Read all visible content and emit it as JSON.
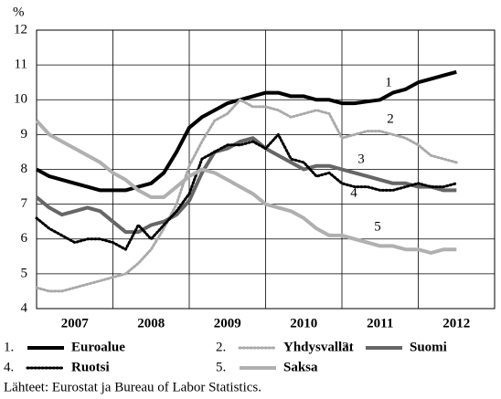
{
  "chart_data": {
    "type": "line",
    "unit_label": "%",
    "source": "Lähteet: Eurostat ja Bureau of Labor Statistics.",
    "xlim": [
      2007,
      2013
    ],
    "xticks": [
      2008,
      2009,
      2010,
      2011,
      2012
    ],
    "year_labels": [
      "2007",
      "2008",
      "2009",
      "2010",
      "2011",
      "2012"
    ],
    "ylim": [
      4,
      12
    ],
    "yticks": [
      4,
      5,
      6,
      7,
      8,
      9,
      10,
      11,
      12
    ],
    "grid": true,
    "x": [
      2007.0,
      2007.167,
      2007.333,
      2007.5,
      2007.667,
      2007.833,
      2008.0,
      2008.167,
      2008.333,
      2008.5,
      2008.667,
      2008.833,
      2009.0,
      2009.167,
      2009.333,
      2009.5,
      2009.667,
      2009.833,
      2010.0,
      2010.167,
      2010.333,
      2010.5,
      2010.667,
      2010.833,
      2011.0,
      2011.167,
      2011.333,
      2011.5,
      2011.667,
      2011.833,
      2012.0,
      2012.167,
      2012.333,
      2012.5
    ],
    "series": [
      {
        "name": "Euroalue",
        "number": "1",
        "legend_number": "1.",
        "color": "#000000",
        "width": 4,
        "dash": "solid",
        "values": [
          8.0,
          7.8,
          7.7,
          7.6,
          7.5,
          7.4,
          7.4,
          7.4,
          7.5,
          7.6,
          7.9,
          8.5,
          9.2,
          9.5,
          9.7,
          9.9,
          10.0,
          10.1,
          10.2,
          10.2,
          10.1,
          10.1,
          10.0,
          10.0,
          9.9,
          9.9,
          9.95,
          10.0,
          10.2,
          10.3,
          10.5,
          10.6,
          10.7,
          10.8
        ]
      },
      {
        "name": "Yhdysvallat",
        "number": "2",
        "legend_number": "2.",
        "color": "#aaaaaa",
        "width": 3,
        "dash": "dot",
        "values": [
          4.6,
          4.5,
          4.5,
          4.6,
          4.7,
          4.8,
          4.9,
          5.0,
          5.3,
          5.7,
          6.3,
          7.0,
          8.1,
          8.8,
          9.4,
          9.6,
          10.0,
          9.8,
          9.8,
          9.7,
          9.5,
          9.6,
          9.7,
          9.6,
          8.9,
          9.0,
          9.1,
          9.1,
          9.0,
          8.9,
          8.7,
          8.4,
          8.3,
          8.2
        ]
      },
      {
        "name": "Suomi",
        "number": "3",
        "legend_number": "3.",
        "color": "#666666",
        "width": 4,
        "dash": "solid",
        "values": [
          7.2,
          6.9,
          6.7,
          6.8,
          6.9,
          6.8,
          6.5,
          6.2,
          6.2,
          6.4,
          6.5,
          6.7,
          7.1,
          7.9,
          8.5,
          8.6,
          8.8,
          8.9,
          8.6,
          8.4,
          8.2,
          8.0,
          8.1,
          8.1,
          8.0,
          7.9,
          7.8,
          7.7,
          7.6,
          7.6,
          7.5,
          7.5,
          7.4,
          7.4
        ]
      },
      {
        "name": "Ruotsi",
        "number": "4",
        "legend_number": "4.",
        "color": "#000000",
        "width": 3,
        "dash": "dot",
        "values": [
          6.6,
          6.3,
          6.1,
          5.9,
          6.0,
          6.0,
          5.9,
          5.7,
          6.4,
          6.0,
          6.4,
          6.8,
          7.3,
          8.3,
          8.5,
          8.7,
          8.7,
          8.8,
          8.6,
          9.0,
          8.3,
          8.2,
          7.8,
          7.9,
          7.6,
          7.5,
          7.5,
          7.4,
          7.4,
          7.5,
          7.6,
          7.5,
          7.5,
          7.6
        ]
      },
      {
        "name": "Saksa",
        "number": "5",
        "legend_number": "5.",
        "color": "#b0b0b0",
        "width": 4,
        "dash": "solid",
        "values": [
          9.4,
          9.0,
          8.8,
          8.6,
          8.4,
          8.2,
          7.9,
          7.7,
          7.4,
          7.2,
          7.2,
          7.5,
          7.8,
          8.0,
          7.9,
          7.7,
          7.5,
          7.3,
          7.0,
          6.9,
          6.8,
          6.6,
          6.3,
          6.1,
          6.1,
          6.0,
          5.9,
          5.8,
          5.8,
          5.7,
          5.7,
          5.6,
          5.7,
          5.7
        ]
      }
    ]
  }
}
